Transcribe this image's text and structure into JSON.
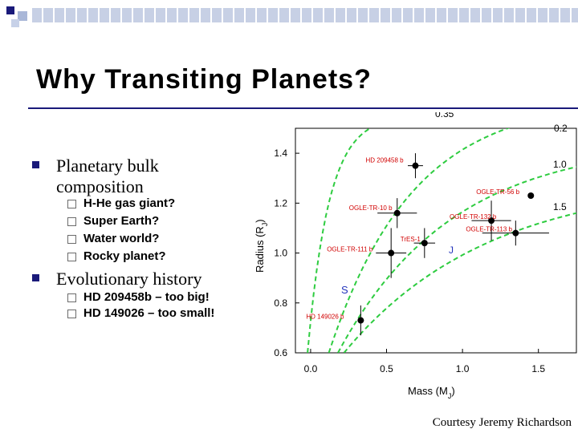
{
  "slide": {
    "title": "Why Transiting Planets?",
    "credit": "Courtesy Jeremy Richardson"
  },
  "bullets": [
    {
      "text": "Planetary  bulk composition",
      "sub": [
        "H-He gas giant?",
        "Super Earth?",
        "Water world?",
        "Rocky planet?"
      ]
    },
    {
      "text": "Evolutionary history",
      "sub": [
        "HD 209458b – too big!",
        "HD 149026 – too small!"
      ]
    }
  ],
  "colors": {
    "accent": "#1a1a7a",
    "curve": "#2ecc40",
    "points": "#000000",
    "labels": "#d10000",
    "planet_markers": "#2233bb"
  },
  "chart_data": {
    "type": "scatter",
    "xlabel": "Mass (M",
    "xlabel_sub": "J",
    "ylabel": "Radius (R",
    "ylabel_sub": "J",
    "xlim": [
      -0.1,
      1.75
    ],
    "ylim": [
      0.6,
      1.5
    ],
    "xticks": [
      "0.0",
      "0.5",
      "1.0",
      "1.5"
    ],
    "xtick_values": [
      0.0,
      0.5,
      1.0,
      1.5
    ],
    "yticks": [
      "0.6",
      "0.8",
      "1.0",
      "1.2",
      "1.4"
    ],
    "ytick_values": [
      0.6,
      0.8,
      1.0,
      1.2,
      1.4
    ],
    "curve_labels": [
      "0.35",
      "0.2",
      "1.0",
      "1.5"
    ],
    "planet_markers": [
      "J",
      "S"
    ],
    "points": [
      {
        "label": "HD 209458 b",
        "mass": 0.69,
        "radius": 1.35,
        "xerr": 0.05,
        "yerr": 0.05
      },
      {
        "label": "OGLE-TR-56 b",
        "mass": 1.45,
        "radius": 1.23,
        "xerr": 0.0,
        "yerr": 0.0
      },
      {
        "label": "OGLE-TR-10 b",
        "mass": 0.57,
        "radius": 1.16,
        "xerr": 0.13,
        "yerr": 0.06
      },
      {
        "label": "OGLE-TR-132 b",
        "mass": 1.19,
        "radius": 1.13,
        "xerr": 0.13,
        "yerr": 0.08
      },
      {
        "label": "OGLE-TR-113 b",
        "mass": 1.35,
        "radius": 1.08,
        "xerr": 0.22,
        "yerr": 0.05
      },
      {
        "label": "TrES-1",
        "mass": 0.75,
        "radius": 1.04,
        "xerr": 0.07,
        "yerr": 0.06
      },
      {
        "label": "OGLE-TR-111 b",
        "mass": 0.53,
        "radius": 1.0,
        "xerr": 0.1,
        "yerr": 0.1
      },
      {
        "label": "HD 149026 b",
        "mass": 0.33,
        "radius": 0.73,
        "xerr": 0.02,
        "yerr": 0.06
      }
    ]
  }
}
